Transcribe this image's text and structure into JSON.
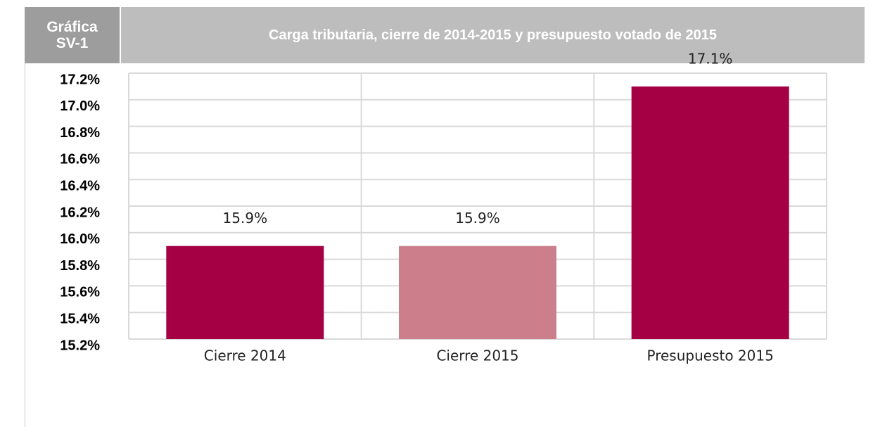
{
  "header": {
    "label": "Gráfica SV-1"
  },
  "chart_data": {
    "type": "bar",
    "title": "Carga tributaria, cierre de 2014-2015 y presupuesto votado de 2015",
    "categories": [
      "Cierre 2014",
      "Cierre 2015",
      "Presupuesto 2015"
    ],
    "values": [
      15.9,
      15.9,
      17.1
    ],
    "value_labels": [
      "15.9%",
      "15.9%",
      "17.1%"
    ],
    "colors": [
      "#a50044",
      "#cc7f8a",
      "#a50044"
    ],
    "ylim": [
      15.2,
      17.2
    ],
    "yticks": [
      {
        "value": 15.2,
        "label": "15.2%"
      },
      {
        "value": 15.4,
        "label": "15.4%"
      },
      {
        "value": 15.6,
        "label": "15.6%"
      },
      {
        "value": 15.8,
        "label": "15.8%"
      },
      {
        "value": 16.0,
        "label": "16.0%"
      },
      {
        "value": 16.2,
        "label": "16.2%"
      },
      {
        "value": 16.4,
        "label": "16.4%"
      },
      {
        "value": 16.6,
        "label": "16.6%"
      },
      {
        "value": 16.8,
        "label": "16.8%"
      },
      {
        "value": 17.0,
        "label": "17.0%"
      },
      {
        "value": 17.2,
        "label": "17.2%"
      }
    ],
    "grid": true
  }
}
